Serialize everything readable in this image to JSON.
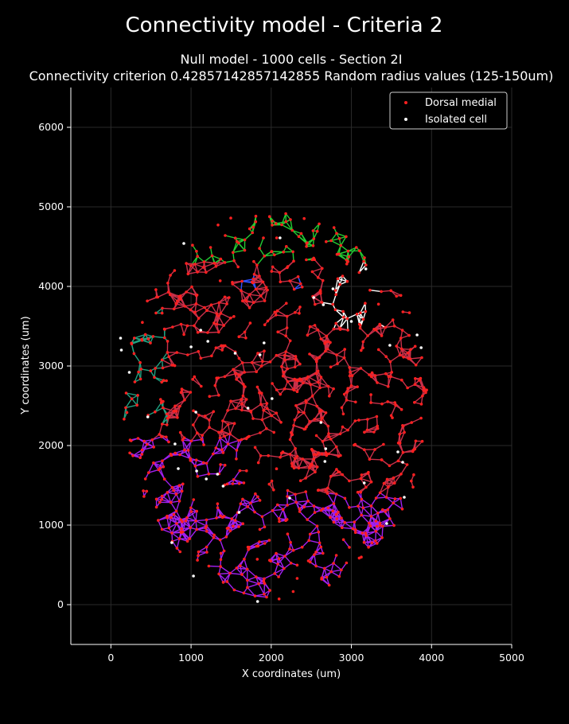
{
  "figure": {
    "suptitle": "Connectivity model - Criteria 2",
    "subtitle_line1": "Null model - 1000 cells - Section 2I",
    "subtitle_line2": "Connectivity criterion 0.42857142857142855  Random radius values (125-150um)"
  },
  "chart_data": {
    "type": "scatter",
    "title": "Null model - 1000 cells - Section 2I",
    "xlabel": "X coordinates (um)",
    "ylabel": "Y coordinates (um)",
    "xlim": [
      -500,
      5000
    ],
    "ylim": [
      -500,
      6500
    ],
    "xticks": [
      0,
      1000,
      2000,
      3000,
      4000,
      5000
    ],
    "yticks": [
      0,
      1000,
      2000,
      3000,
      4000,
      5000,
      6000
    ],
    "grid": true,
    "legend_position": "top-right",
    "series": [
      {
        "name": "Dorsal medial",
        "color": "#ff2020"
      },
      {
        "name": "Isolated cell",
        "color": "#ffffff"
      }
    ],
    "cloud": {
      "center": [
        2050,
        2520
      ],
      "radius_x": 1900,
      "radius_y": 2450,
      "total_cells": 1000
    },
    "isolated_points": [
      [
        910,
        4540
      ],
      [
        2110,
        4610
      ],
      [
        3180,
        4220
      ],
      [
        2770,
        3970
      ],
      [
        2530,
        3860
      ],
      [
        2650,
        3770
      ],
      [
        3000,
        3560
      ],
      [
        3480,
        3260
      ],
      [
        3820,
        3390
      ],
      [
        3870,
        3230
      ],
      [
        120,
        3350
      ],
      [
        130,
        3200
      ],
      [
        230,
        2920
      ],
      [
        1120,
        3450
      ],
      [
        1210,
        3310
      ],
      [
        1550,
        3160
      ],
      [
        1860,
        3140
      ],
      [
        1910,
        3290
      ],
      [
        1000,
        3240
      ],
      [
        1710,
        2470
      ],
      [
        2010,
        2590
      ],
      [
        460,
        2360
      ],
      [
        1060,
        2420
      ],
      [
        2620,
        2290
      ],
      [
        800,
        2020
      ],
      [
        2680,
        1960
      ],
      [
        3580,
        1920
      ],
      [
        3640,
        1790
      ],
      [
        2670,
        1800
      ],
      [
        840,
        1710
      ],
      [
        1070,
        1680
      ],
      [
        1190,
        1580
      ],
      [
        1330,
        1640
      ],
      [
        1400,
        1490
      ],
      [
        3160,
        1530
      ],
      [
        2230,
        1340
      ],
      [
        3660,
        1350
      ],
      [
        1600,
        1160
      ],
      [
        3440,
        1020
      ],
      [
        760,
        780
      ],
      [
        1030,
        360
      ],
      [
        1830,
        40
      ]
    ],
    "edge_color_groups": [
      {
        "name": "north-edge",
        "color": "#22cc33"
      },
      {
        "name": "north-east-cluster",
        "color": "#ffffff"
      },
      {
        "name": "west-edge",
        "color": "#20a080"
      },
      {
        "name": "south",
        "color": "#a020f0"
      },
      {
        "name": "central",
        "color": "#c8304a"
      },
      {
        "name": "accents",
        "color": "#3050ff"
      }
    ]
  }
}
